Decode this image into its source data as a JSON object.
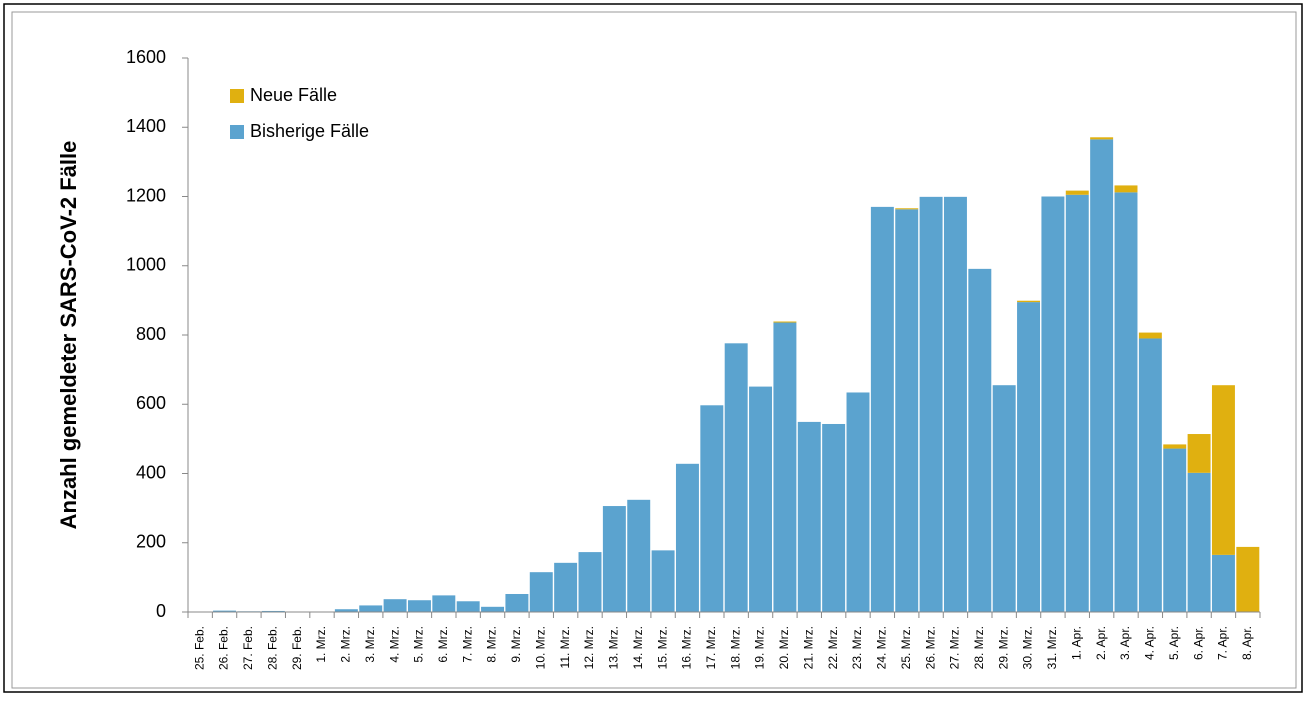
{
  "chart_data": {
    "type": "stacked_bar",
    "ylabel": "Anzahl gemeldeter SARS-CoV-2 Fälle",
    "categories": [
      "25. Feb.",
      "26. Feb.",
      "27. Feb.",
      "28. Feb.",
      "29. Feb.",
      "1. Mrz.",
      "2. Mrz.",
      "3. Mrz.",
      "4. Mrz.",
      "5. Mrz.",
      "6. Mrz.",
      "7. Mrz.",
      "8. Mrz.",
      "9. Mrz.",
      "10. Mrz.",
      "11. Mrz.",
      "12. Mrz.",
      "13. Mrz.",
      "14. Mrz.",
      "15. Mrz.",
      "16. Mrz.",
      "17. Mrz.",
      "18. Mrz.",
      "19. Mrz.",
      "20. Mrz.",
      "21. Mrz.",
      "22. Mrz.",
      "23. Mrz.",
      "24. Mrz.",
      "25. Mrz.",
      "26. Mrz.",
      "27. Mrz.",
      "28. Mrz.",
      "29. Mrz.",
      "30. Mrz.",
      "31. Mrz.",
      "1. Apr.",
      "2. Apr.",
      "3. Apr.",
      "4. Apr.",
      "5. Apr.",
      "6. Apr.",
      "7. Apr.",
      "8. Apr."
    ],
    "series": [
      {
        "name": "Bisherige Fälle",
        "color": "#5ba3cf",
        "values": [
          0,
          4,
          2,
          3,
          1,
          1,
          8,
          19,
          37,
          34,
          48,
          31,
          15,
          52,
          115,
          142,
          173,
          306,
          324,
          178,
          428,
          597,
          776,
          651,
          836,
          549,
          543,
          634,
          1170,
          1163,
          1199,
          1199,
          991,
          655,
          895,
          1200,
          1205,
          1365,
          1212,
          790,
          472,
          402,
          165,
          0
        ]
      },
      {
        "name": "Neue Fälle",
        "color": "#e0b010",
        "values": [
          0,
          0,
          0,
          0,
          0,
          0,
          0,
          0,
          0,
          0,
          0,
          0,
          0,
          0,
          0,
          0,
          0,
          0,
          0,
          0,
          0,
          0,
          0,
          0,
          3,
          0,
          0,
          0,
          0,
          3,
          0,
          0,
          0,
          0,
          4,
          0,
          12,
          6,
          20,
          17,
          12,
          112,
          490,
          188
        ]
      }
    ],
    "ylim": [
      0,
      1600
    ],
    "yticks": [
      0,
      200,
      400,
      600,
      800,
      1000,
      1200,
      1400,
      1600
    ],
    "grid": false
  }
}
